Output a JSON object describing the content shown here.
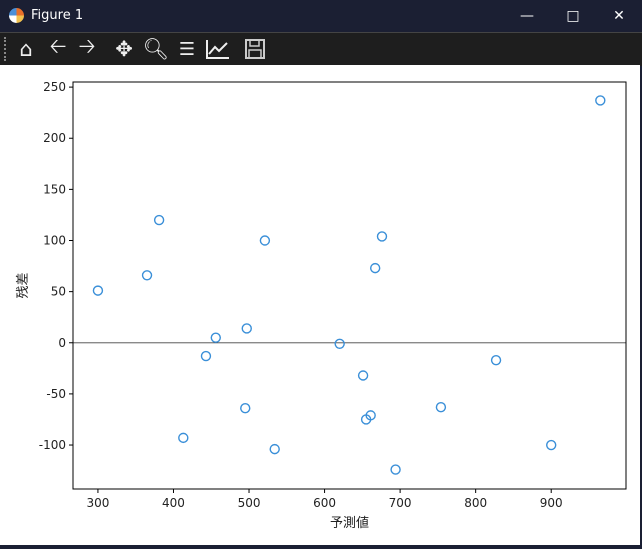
{
  "window": {
    "title": "Figure 1",
    "controls": [
      "minimize",
      "maximize",
      "close"
    ]
  },
  "toolbar": {
    "buttons": [
      "home-icon",
      "back-icon",
      "forward-icon",
      "pan-icon",
      "zoom-icon",
      "configure-subplots-icon",
      "edit-axes-icon",
      "save-icon"
    ]
  },
  "chart_data": {
    "type": "scatter",
    "title": "",
    "xlabel": "予測値",
    "ylabel": "残差",
    "xlim": [
      267,
      999
    ],
    "ylim": [
      -143,
      255
    ],
    "xticks": [
      300,
      400,
      500,
      600,
      700,
      800,
      900
    ],
    "yticks": [
      -100,
      -50,
      0,
      50,
      100,
      150,
      200,
      250
    ],
    "hline": 0,
    "grid": false,
    "marker": "open-circle",
    "color": "#3a8fd8",
    "points": [
      [
        300,
        51
      ],
      [
        365,
        66
      ],
      [
        381,
        120
      ],
      [
        413,
        -93
      ],
      [
        443,
        -13
      ],
      [
        456,
        5
      ],
      [
        495,
        -64
      ],
      [
        497,
        14
      ],
      [
        521,
        100
      ],
      [
        534,
        -104
      ],
      [
        620,
        -1
      ],
      [
        651,
        -32
      ],
      [
        655,
        -75
      ],
      [
        661,
        -71
      ],
      [
        667,
        73
      ],
      [
        676,
        104
      ],
      [
        694,
        -124
      ],
      [
        754,
        -63
      ],
      [
        827,
        -17
      ],
      [
        900,
        -100
      ],
      [
        965,
        237
      ]
    ]
  }
}
